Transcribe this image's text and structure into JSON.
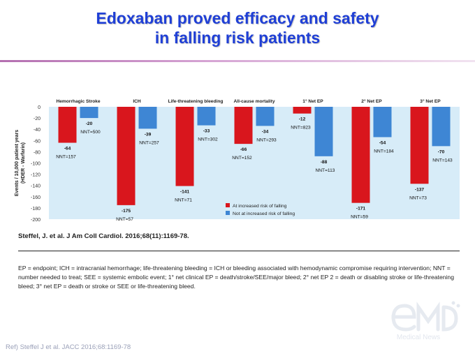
{
  "slide": {
    "title_line1": "Edoxaban proved efficacy and safety",
    "title_line2": "in falling risk patients",
    "citation": "Steffel, J. et al. J Am Coll Cardiol. 2016;68(11):1169-78.",
    "footnote": "EP = endpoint; ICH = intracranial hemorrhage; life-threatening bleeding = ICH or bleeding associated with hemodynamic compromise requiring intervention; NNT = number needed to treat; SEE = systemic embolic event; 1° net clinical EP = death/stroke/SEE/major bleed; 2° net EP 2 = death or disabling stroke or life-threatening bleed; 3° net EP = death or stroke or SEE or life-threatening bleed.",
    "ref": "Ref) Steffel J et al. JACC 2016;68:1169-78",
    "watermark_text": "Medical News"
  },
  "colors": {
    "title": "#1f3fd6",
    "falling": "#d9161d",
    "not_falling": "#3e86d4",
    "plot_background": "#d7ecf8"
  },
  "chart_data": {
    "type": "bar",
    "ylabel": "Events / 10,000 patient years\n(HDER - Warfarin)",
    "ylim": [
      -200,
      0
    ],
    "yticks": [
      0,
      -20,
      -40,
      -60,
      -80,
      -100,
      -120,
      -140,
      -160,
      -180,
      -200
    ],
    "categories": [
      "Hemorrhagic Stroke",
      "ICH",
      "Life-threatening bleeding",
      "All-cause mortality",
      "1° Net EP",
      "2° Net EP",
      "3° Net EP"
    ],
    "series": [
      {
        "name": "At increased risk of falling",
        "values": [
          -64,
          -175,
          -141,
          -66,
          -12,
          -171,
          -137
        ],
        "nnt": [
          "NNT=157",
          "NNT=57",
          "NNT=71",
          "NNT=152",
          "NNT=823",
          "NNT=59",
          "NNT=73"
        ]
      },
      {
        "name": "Not at increased risk of falling",
        "values": [
          -20,
          -39,
          -33,
          -34,
          -88,
          -54,
          -70
        ],
        "nnt": [
          "NNT=500",
          "NNT=257",
          "NNT=302",
          "NNT=293",
          "NNT=113",
          "NNT=184",
          "NNT=143"
        ]
      }
    ],
    "grid": false,
    "legend": "bottom-center"
  }
}
